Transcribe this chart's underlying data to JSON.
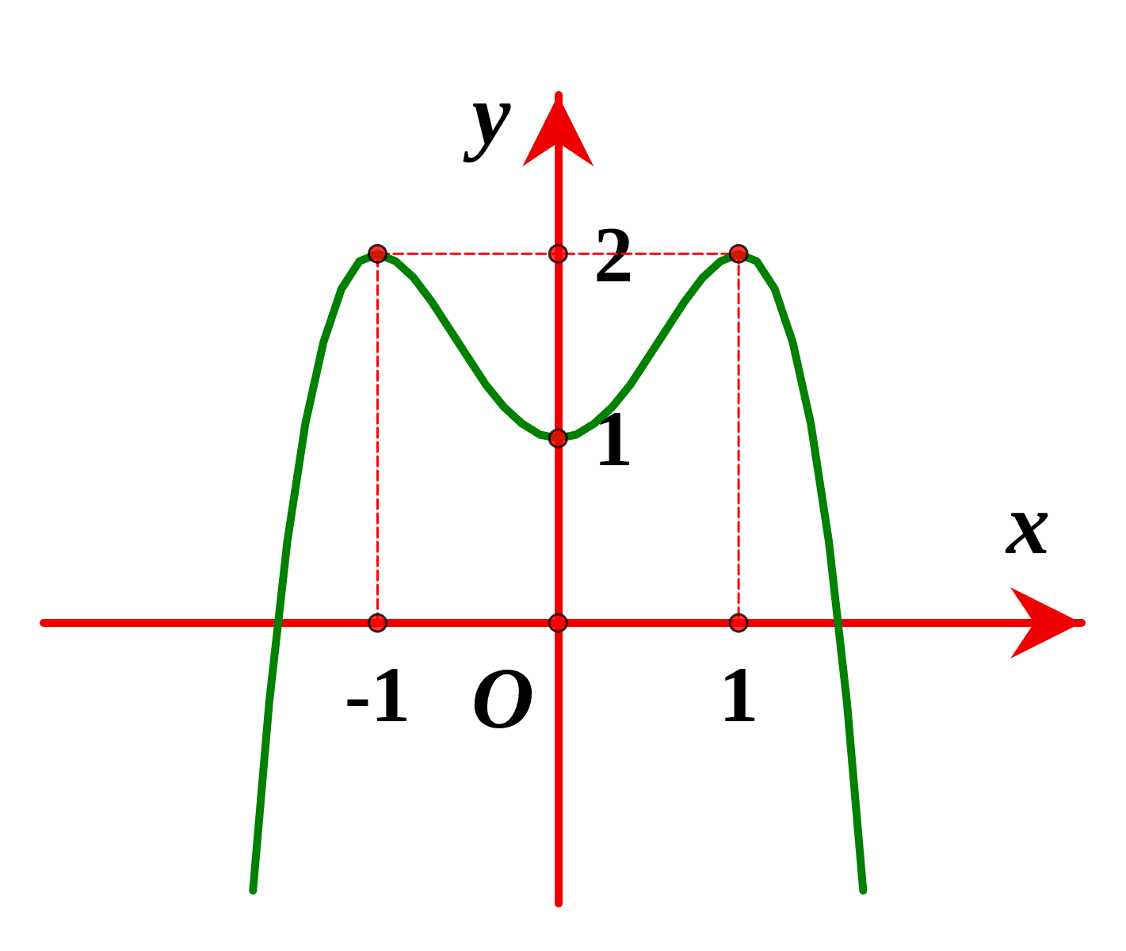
{
  "chart_data": {
    "type": "line",
    "xlabel": "x",
    "ylabel": "y",
    "xlim": [
      -2.85,
      2.9
    ],
    "ylim": [
      -1.52,
      2.86
    ],
    "xticks": [
      -1,
      1
    ],
    "yticks": [
      1,
      2
    ],
    "annotations": [
      {
        "text": "O",
        "x": 0,
        "y": 0
      }
    ],
    "series": [
      {
        "color": "#008000",
        "marker": "none",
        "line_style": "solid",
        "x": [
          -1.69,
          -1.6,
          -1.5,
          -1.4,
          -1.3,
          -1.2,
          -1.1,
          -1,
          -0.9,
          -0.8,
          -0.7,
          -0.6,
          -0.5,
          -0.4,
          -0.3,
          -0.2,
          -0.1,
          0,
          0.1,
          0.2,
          0.3,
          0.4,
          0.5,
          0.6,
          0.7,
          0.8,
          0.9,
          1,
          1.1,
          1.2,
          1.3,
          1.4,
          1.5,
          1.6,
          1.69
        ],
        "values": [
          -1.45,
          -0.43,
          0.44,
          1.08,
          1.52,
          1.81,
          1.96,
          2,
          1.96,
          1.87,
          1.74,
          1.59,
          1.44,
          1.29,
          1.17,
          1.08,
          1.02,
          1,
          1.02,
          1.08,
          1.17,
          1.29,
          1.44,
          1.59,
          1.74,
          1.87,
          1.96,
          2,
          1.96,
          1.81,
          1.52,
          1.08,
          0.44,
          -0.43,
          -1.45
        ]
      },
      {
        "type": "line",
        "color": "#ff0000",
        "marker": "none",
        "line_style": "dashed",
        "x": [
          -1,
          -1,
          1,
          1
        ],
        "values": [
          0,
          2,
          2,
          0
        ]
      },
      {
        "type": "scatter",
        "color": "#ff0000",
        "marker": "circle",
        "x": [
          -1,
          0,
          1,
          -1,
          0,
          1,
          0
        ],
        "values": [
          0,
          0,
          0,
          2,
          2,
          2,
          1
        ]
      }
    ]
  }
}
